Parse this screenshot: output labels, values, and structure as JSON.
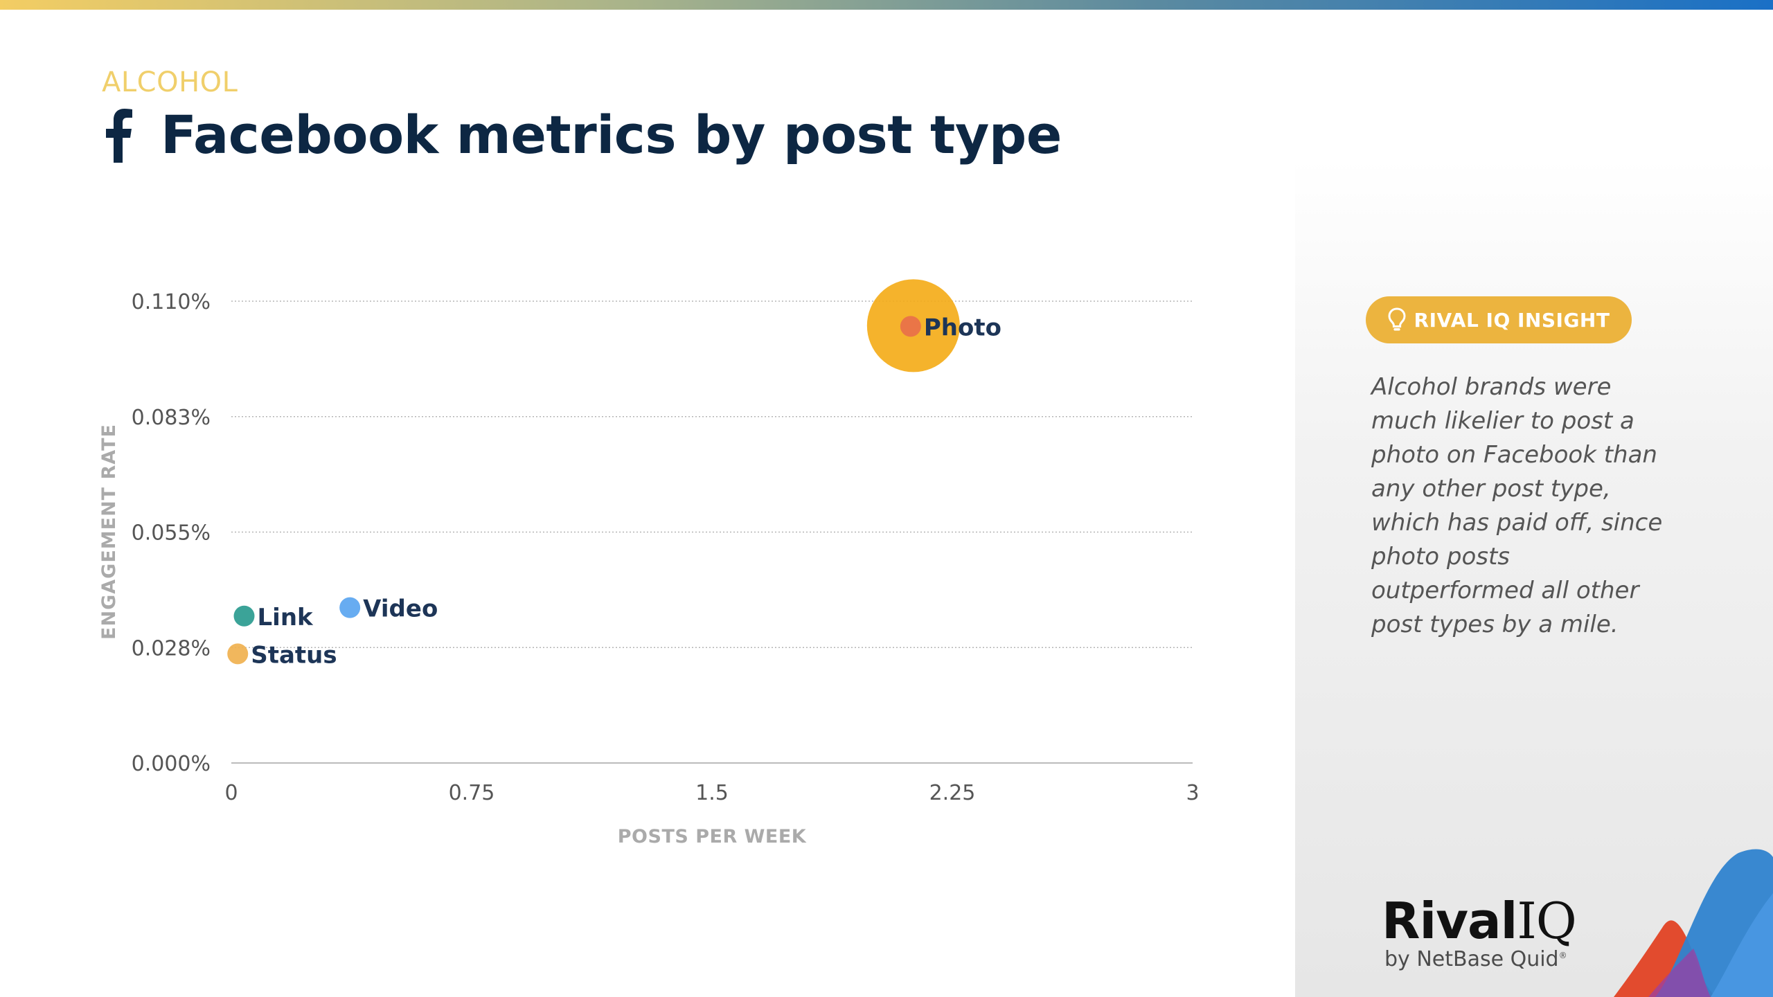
{
  "header": {
    "category": "ALCOHOL",
    "title": "Facebook metrics by post type",
    "icon": "facebook-icon"
  },
  "chart_data": {
    "type": "scatter",
    "title": "",
    "xlabel": "POSTS PER WEEK",
    "ylabel": "ENGAGEMENT RATE",
    "xlim": [
      0,
      3
    ],
    "ylim": [
      0,
      0.11
    ],
    "x_ticks": [
      "0",
      "0.75",
      "1.5",
      "2.25",
      "3"
    ],
    "x_tick_values": [
      0,
      0.75,
      1.5,
      2.25,
      3
    ],
    "y_ticks": [
      "0.000%",
      "0.028%",
      "0.055%",
      "0.083%",
      "0.110%"
    ],
    "y_tick_values": [
      0,
      0.0275,
      0.055,
      0.0825,
      0.11
    ],
    "y_unit": "%",
    "grid": true,
    "points": [
      {
        "name": "Photo",
        "x": 2.12,
        "y": 0.104,
        "color": "#e8704a",
        "bubble_color": "#f4ad1a"
      },
      {
        "name": "Link",
        "x": 0.04,
        "y": 0.035,
        "color": "#2a9b8f"
      },
      {
        "name": "Video",
        "x": 0.37,
        "y": 0.037,
        "color": "#5aa5f0"
      },
      {
        "name": "Status",
        "x": 0.02,
        "y": 0.026,
        "color": "#f0b14f"
      }
    ]
  },
  "insight": {
    "badge_label": "RIVAL IQ INSIGHT",
    "badge_color": "#ecb43f",
    "text": "Alcohol brands were much likelier to post a photo on Facebook than any other post type, which has paid off, since photo posts outperformed all other post types by a mile."
  },
  "brand": {
    "name_main": "Rival",
    "name_accent": "IQ",
    "byline": "by NetBase Quid",
    "byline_mark": "®"
  },
  "colors": {
    "title": "#0d2743",
    "category": "#f0cf6b",
    "accent": "#ecb43f",
    "axis_text": "#555555",
    "axis_title": "#aaaaaa"
  }
}
